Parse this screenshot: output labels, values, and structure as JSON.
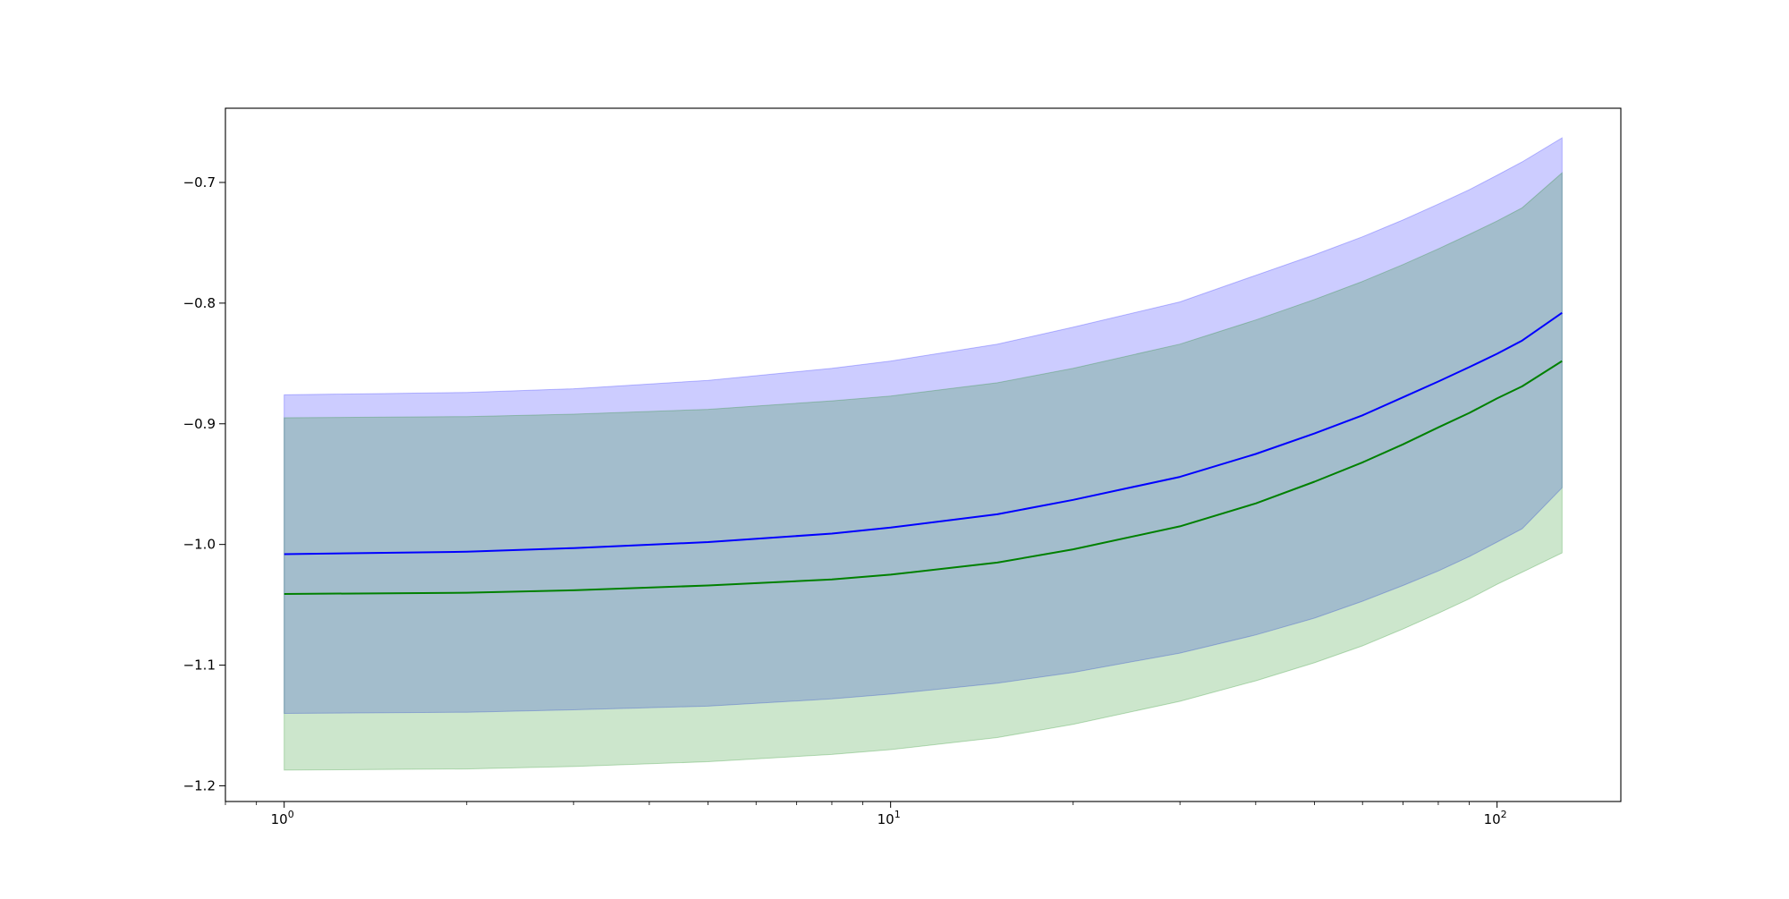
{
  "chart_data": {
    "type": "line",
    "title": "",
    "xlabel": "",
    "ylabel": "",
    "x_scale": "log",
    "xlim": [
      0.8,
      160
    ],
    "ylim": [
      -1.213,
      -0.6385
    ],
    "grid": false,
    "legend": "none",
    "x_ticks": [
      {
        "value": 1,
        "base": "10",
        "exp": "0"
      },
      {
        "value": 10,
        "base": "10",
        "exp": "1"
      },
      {
        "value": 100,
        "base": "10",
        "exp": "2"
      }
    ],
    "y_ticks": [
      {
        "value": -0.7,
        "label": "−0.7"
      },
      {
        "value": -0.8,
        "label": "−0.8"
      },
      {
        "value": -0.9,
        "label": "−0.9"
      },
      {
        "value": -1.0,
        "label": "−1.0"
      },
      {
        "value": -1.1,
        "label": "−1.1"
      },
      {
        "value": -1.2,
        "label": "−1.2"
      }
    ],
    "x": [
      1,
      2,
      3,
      5,
      8,
      10,
      15,
      20,
      30,
      40,
      50,
      60,
      70,
      80,
      90,
      100,
      110,
      128
    ],
    "series": [
      {
        "color": "#0000ff",
        "band_color": "#0000ff",
        "band_opacity": 0.2,
        "values": [
          -1.008,
          -1.006,
          -1.003,
          -0.998,
          -0.991,
          -0.986,
          -0.975,
          -0.963,
          -0.944,
          -0.925,
          -0.908,
          -0.893,
          -0.878,
          -0.865,
          -0.853,
          -0.842,
          -0.831,
          -0.808
        ],
        "lower": [
          -1.14,
          -1.139,
          -1.137,
          -1.134,
          -1.128,
          -1.124,
          -1.115,
          -1.106,
          -1.09,
          -1.075,
          -1.061,
          -1.047,
          -1.034,
          -1.022,
          -1.01,
          -0.998,
          -0.987,
          -0.953
        ],
        "upper": [
          -0.876,
          -0.874,
          -0.871,
          -0.864,
          -0.854,
          -0.848,
          -0.834,
          -0.82,
          -0.799,
          -0.777,
          -0.76,
          -0.745,
          -0.731,
          -0.718,
          -0.706,
          -0.694,
          -0.683,
          -0.663
        ]
      },
      {
        "color": "#008000",
        "band_color": "#008000",
        "band_opacity": 0.2,
        "values": [
          -1.041,
          -1.04,
          -1.038,
          -1.034,
          -1.029,
          -1.025,
          -1.015,
          -1.004,
          -0.985,
          -0.966,
          -0.948,
          -0.932,
          -0.917,
          -0.903,
          -0.891,
          -0.879,
          -0.869,
          -0.848
        ],
        "lower": [
          -1.187,
          -1.186,
          -1.184,
          -1.18,
          -1.174,
          -1.17,
          -1.16,
          -1.149,
          -1.13,
          -1.113,
          -1.098,
          -1.084,
          -1.07,
          -1.057,
          -1.045,
          -1.033,
          -1.023,
          -1.007
        ],
        "upper": [
          -0.895,
          -0.894,
          -0.892,
          -0.888,
          -0.881,
          -0.877,
          -0.866,
          -0.854,
          -0.834,
          -0.814,
          -0.797,
          -0.782,
          -0.768,
          -0.755,
          -0.743,
          -0.732,
          -0.721,
          -0.692
        ]
      }
    ]
  }
}
